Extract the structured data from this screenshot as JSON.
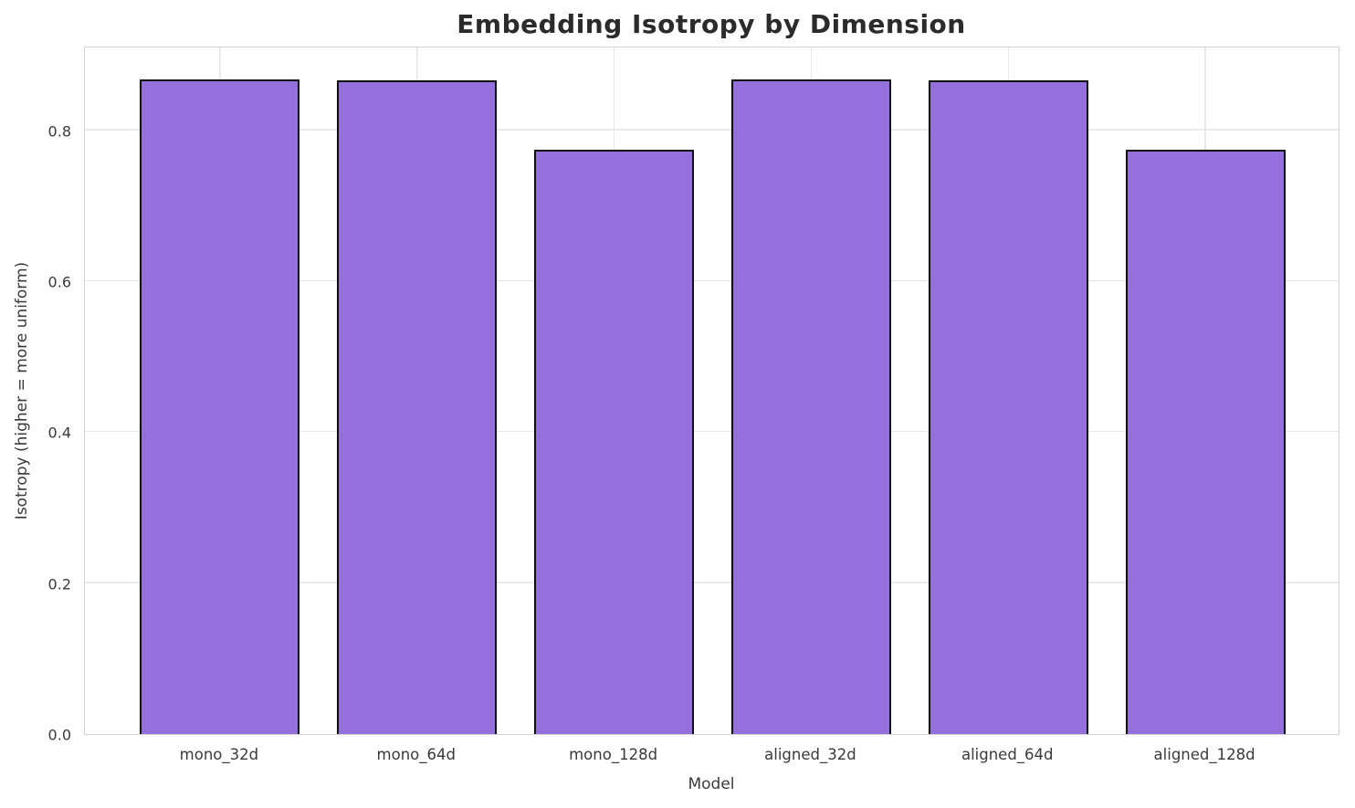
{
  "chart_data": {
    "type": "bar",
    "title": "Embedding Isotropy by Dimension",
    "xlabel": "Model",
    "ylabel": "Isotropy (higher = more uniform)",
    "categories": [
      "mono_32d",
      "mono_64d",
      "mono_128d",
      "aligned_32d",
      "aligned_64d",
      "aligned_128d"
    ],
    "values": [
      0.868,
      0.867,
      0.775,
      0.868,
      0.867,
      0.774
    ],
    "ylim": [
      0,
      0.9125
    ],
    "yticks": [
      0.0,
      0.2,
      0.4,
      0.6,
      0.8
    ],
    "ytick_labels": [
      "0.0",
      "0.2",
      "0.4",
      "0.6",
      "0.8"
    ],
    "grid": "on",
    "legend": "none",
    "colors": {
      "bar_fill": "#9370DB",
      "bar_edge": "#0f0f0f",
      "gridline": "#e9e9e9",
      "spine": "#d3d3d3",
      "tick_text": "#3a3a3a",
      "title_text": "#2b2b2b",
      "background": "#ffffff"
    }
  }
}
